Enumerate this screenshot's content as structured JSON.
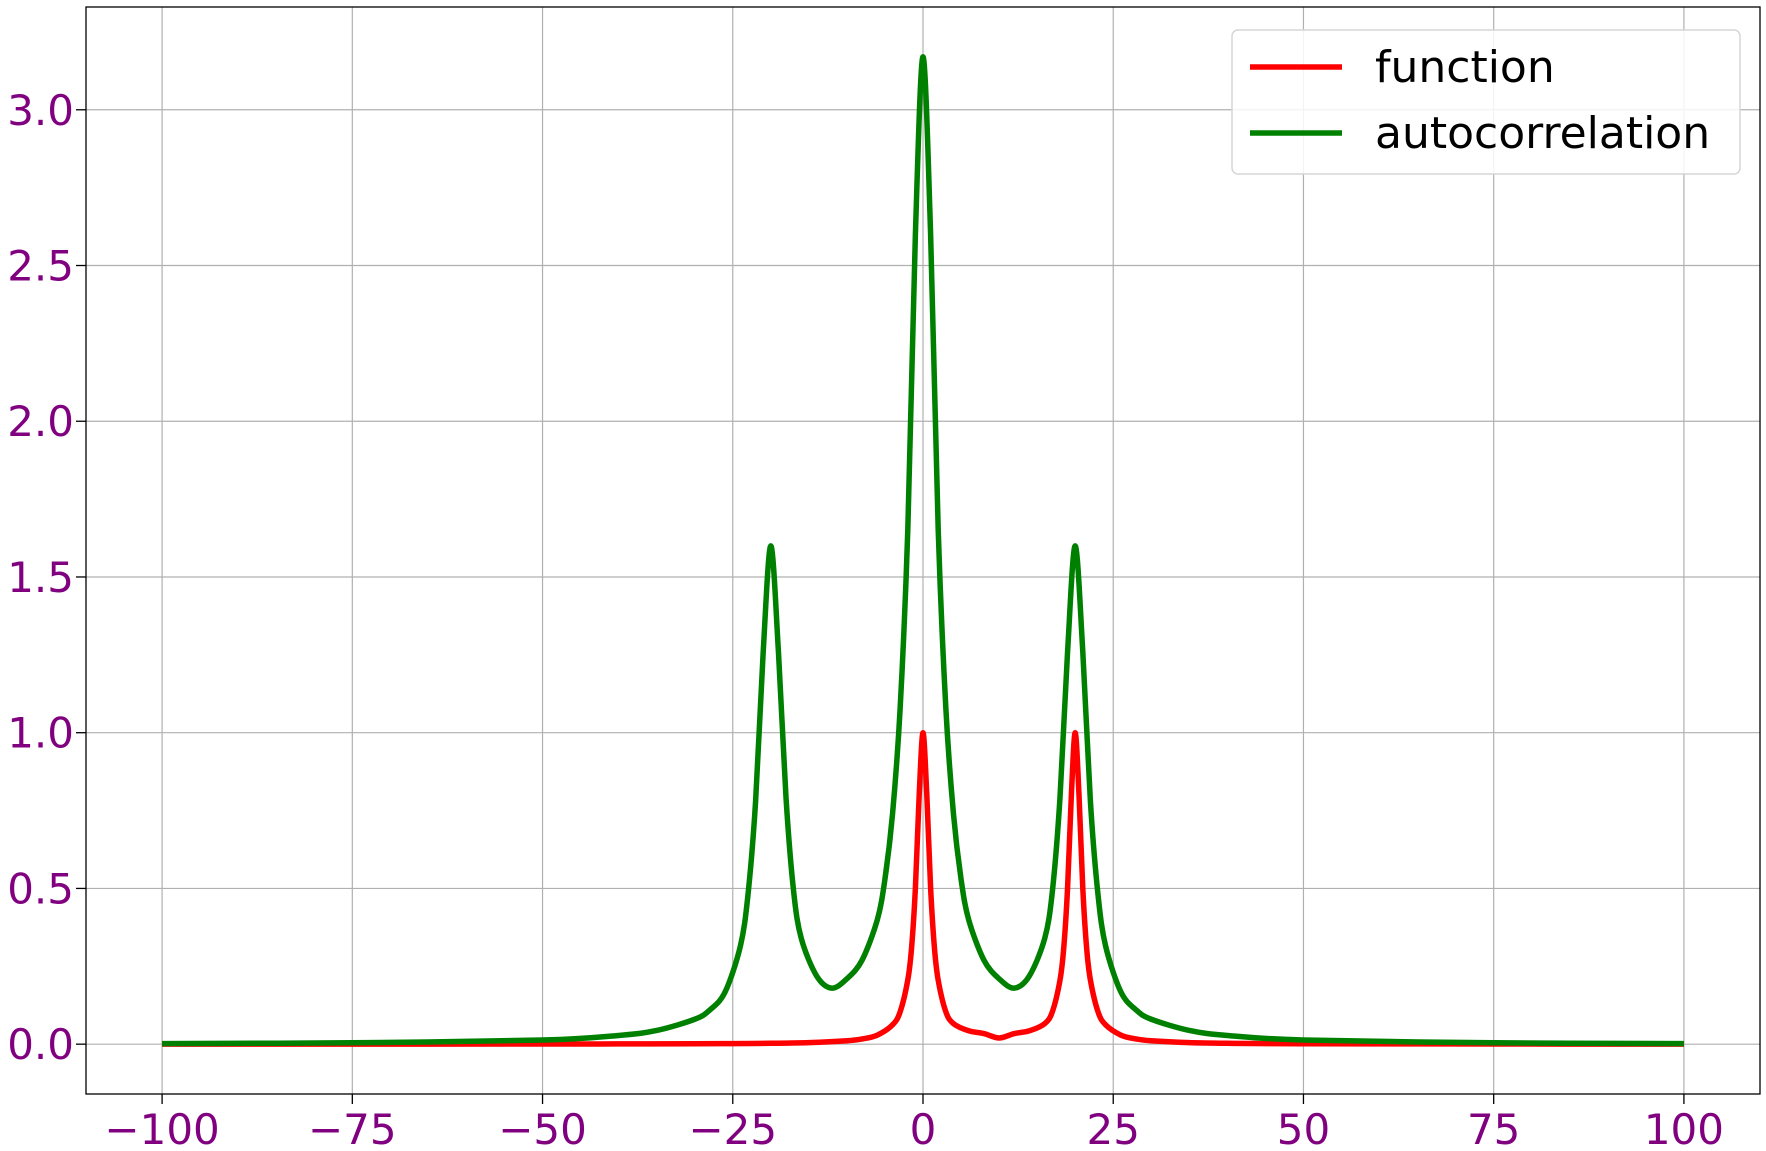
{
  "chart_data": {
    "type": "line",
    "title": "",
    "xlabel": "",
    "ylabel": "",
    "xlim": [
      -110,
      110
    ],
    "ylim": [
      -0.16,
      3.33
    ],
    "grid": true,
    "legend_position": "top-right",
    "tick_color": "#800080",
    "x_ticks": [
      -100,
      -75,
      -50,
      -25,
      0,
      25,
      50,
      75,
      100
    ],
    "x_tick_labels": [
      "−100",
      "−75",
      "−50",
      "−25",
      "0",
      "25",
      "50",
      "75",
      "100"
    ],
    "y_ticks": [
      0.0,
      0.5,
      1.0,
      1.5,
      2.0,
      2.5,
      3.0
    ],
    "y_tick_labels": [
      "0.0",
      "0.5",
      "1.0",
      "1.5",
      "2.0",
      "2.5",
      "3.0"
    ],
    "series": [
      {
        "name": "function",
        "color": "#ff0000",
        "x": [
          -100,
          -75,
          -50,
          -40,
          -30,
          -25,
          -20,
          -15,
          -10,
          -8,
          -6,
          -4,
          -3,
          -2,
          -1.5,
          -1,
          -0.5,
          0,
          0.5,
          1,
          1.5,
          2,
          3,
          4,
          6,
          8,
          10,
          12,
          14,
          16,
          17,
          18,
          18.5,
          19,
          19.5,
          20,
          20.5,
          21,
          21.5,
          22,
          23,
          24,
          26,
          28,
          30,
          35,
          40,
          50,
          75,
          100
        ],
        "values": [
          0.0001,
          0.0002,
          0.0005,
          0.0008,
          0.0013,
          0.0019,
          0.0028,
          0.0049,
          0.0108,
          0.0167,
          0.0292,
          0.062,
          0.104,
          0.206,
          0.31,
          0.501,
          0.801,
          1.0,
          0.801,
          0.502,
          0.31,
          0.205,
          0.104,
          0.066,
          0.043,
          0.034,
          0.02,
          0.034,
          0.043,
          0.066,
          0.104,
          0.205,
          0.31,
          0.502,
          0.801,
          1.0,
          0.801,
          0.501,
          0.31,
          0.206,
          0.104,
          0.062,
          0.0292,
          0.0167,
          0.0108,
          0.0049,
          0.0028,
          0.0013,
          0.0005,
          0.0001
        ]
      },
      {
        "name": "autocorrelation",
        "color": "#008000",
        "x": [
          -100,
          -75,
          -50,
          -40,
          -35,
          -30,
          -28,
          -26,
          -24,
          -23,
          -22,
          -21,
          -20,
          -19,
          -18,
          -17,
          -16,
          -14,
          -12,
          -10,
          -8,
          -6,
          -5,
          -4,
          -3,
          -2,
          -1,
          0,
          1,
          2,
          3,
          4,
          5,
          6,
          8,
          10,
          12,
          14,
          16,
          17,
          18,
          19,
          20,
          21,
          22,
          23,
          24,
          26,
          28,
          30,
          35,
          40,
          50,
          75,
          100
        ],
        "values": [
          0.0019,
          0.0044,
          0.0132,
          0.028,
          0.044,
          0.08,
          0.11,
          0.168,
          0.315,
          0.48,
          0.78,
          1.26,
          1.6,
          1.26,
          0.79,
          0.49,
          0.34,
          0.22,
          0.18,
          0.21,
          0.27,
          0.4,
          0.53,
          0.74,
          1.08,
          1.65,
          2.6,
          3.17,
          2.6,
          1.65,
          1.08,
          0.74,
          0.53,
          0.4,
          0.27,
          0.21,
          0.18,
          0.22,
          0.34,
          0.49,
          0.79,
          1.26,
          1.6,
          1.26,
          0.78,
          0.48,
          0.315,
          0.168,
          0.11,
          0.08,
          0.044,
          0.028,
          0.0132,
          0.0044,
          0.0019
        ]
      }
    ]
  }
}
